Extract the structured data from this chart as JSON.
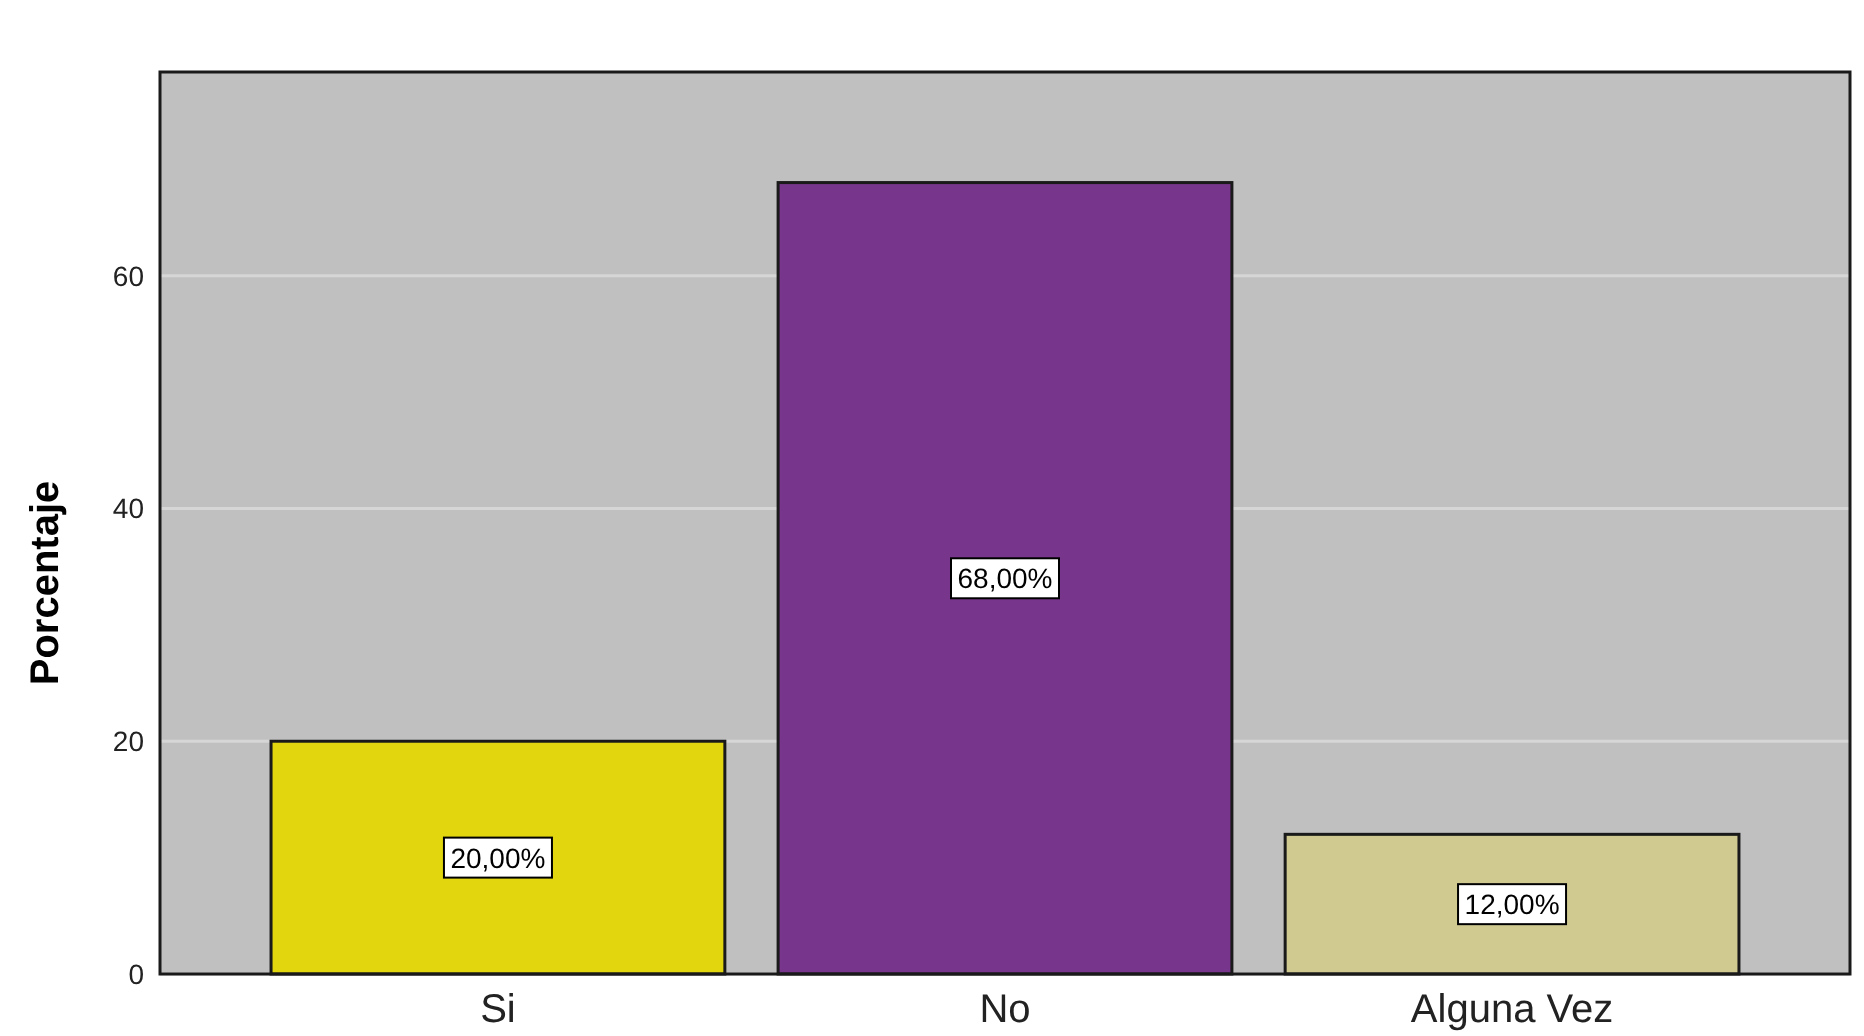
{
  "chart_data": {
    "type": "bar",
    "ylabel": "Porcentaje",
    "categories": [
      "Si",
      "No",
      "Alguna Vez"
    ],
    "values": [
      20,
      68,
      12
    ],
    "colors": [
      "#e2d70f",
      "#77368b",
      "#d0ca91"
    ],
    "value_labels": [
      "20,00%",
      "68,00%",
      "12,00%"
    ],
    "ylim": [
      0,
      77.5
    ],
    "yticks": [
      0,
      20,
      40,
      60
    ],
    "grid": "y"
  }
}
